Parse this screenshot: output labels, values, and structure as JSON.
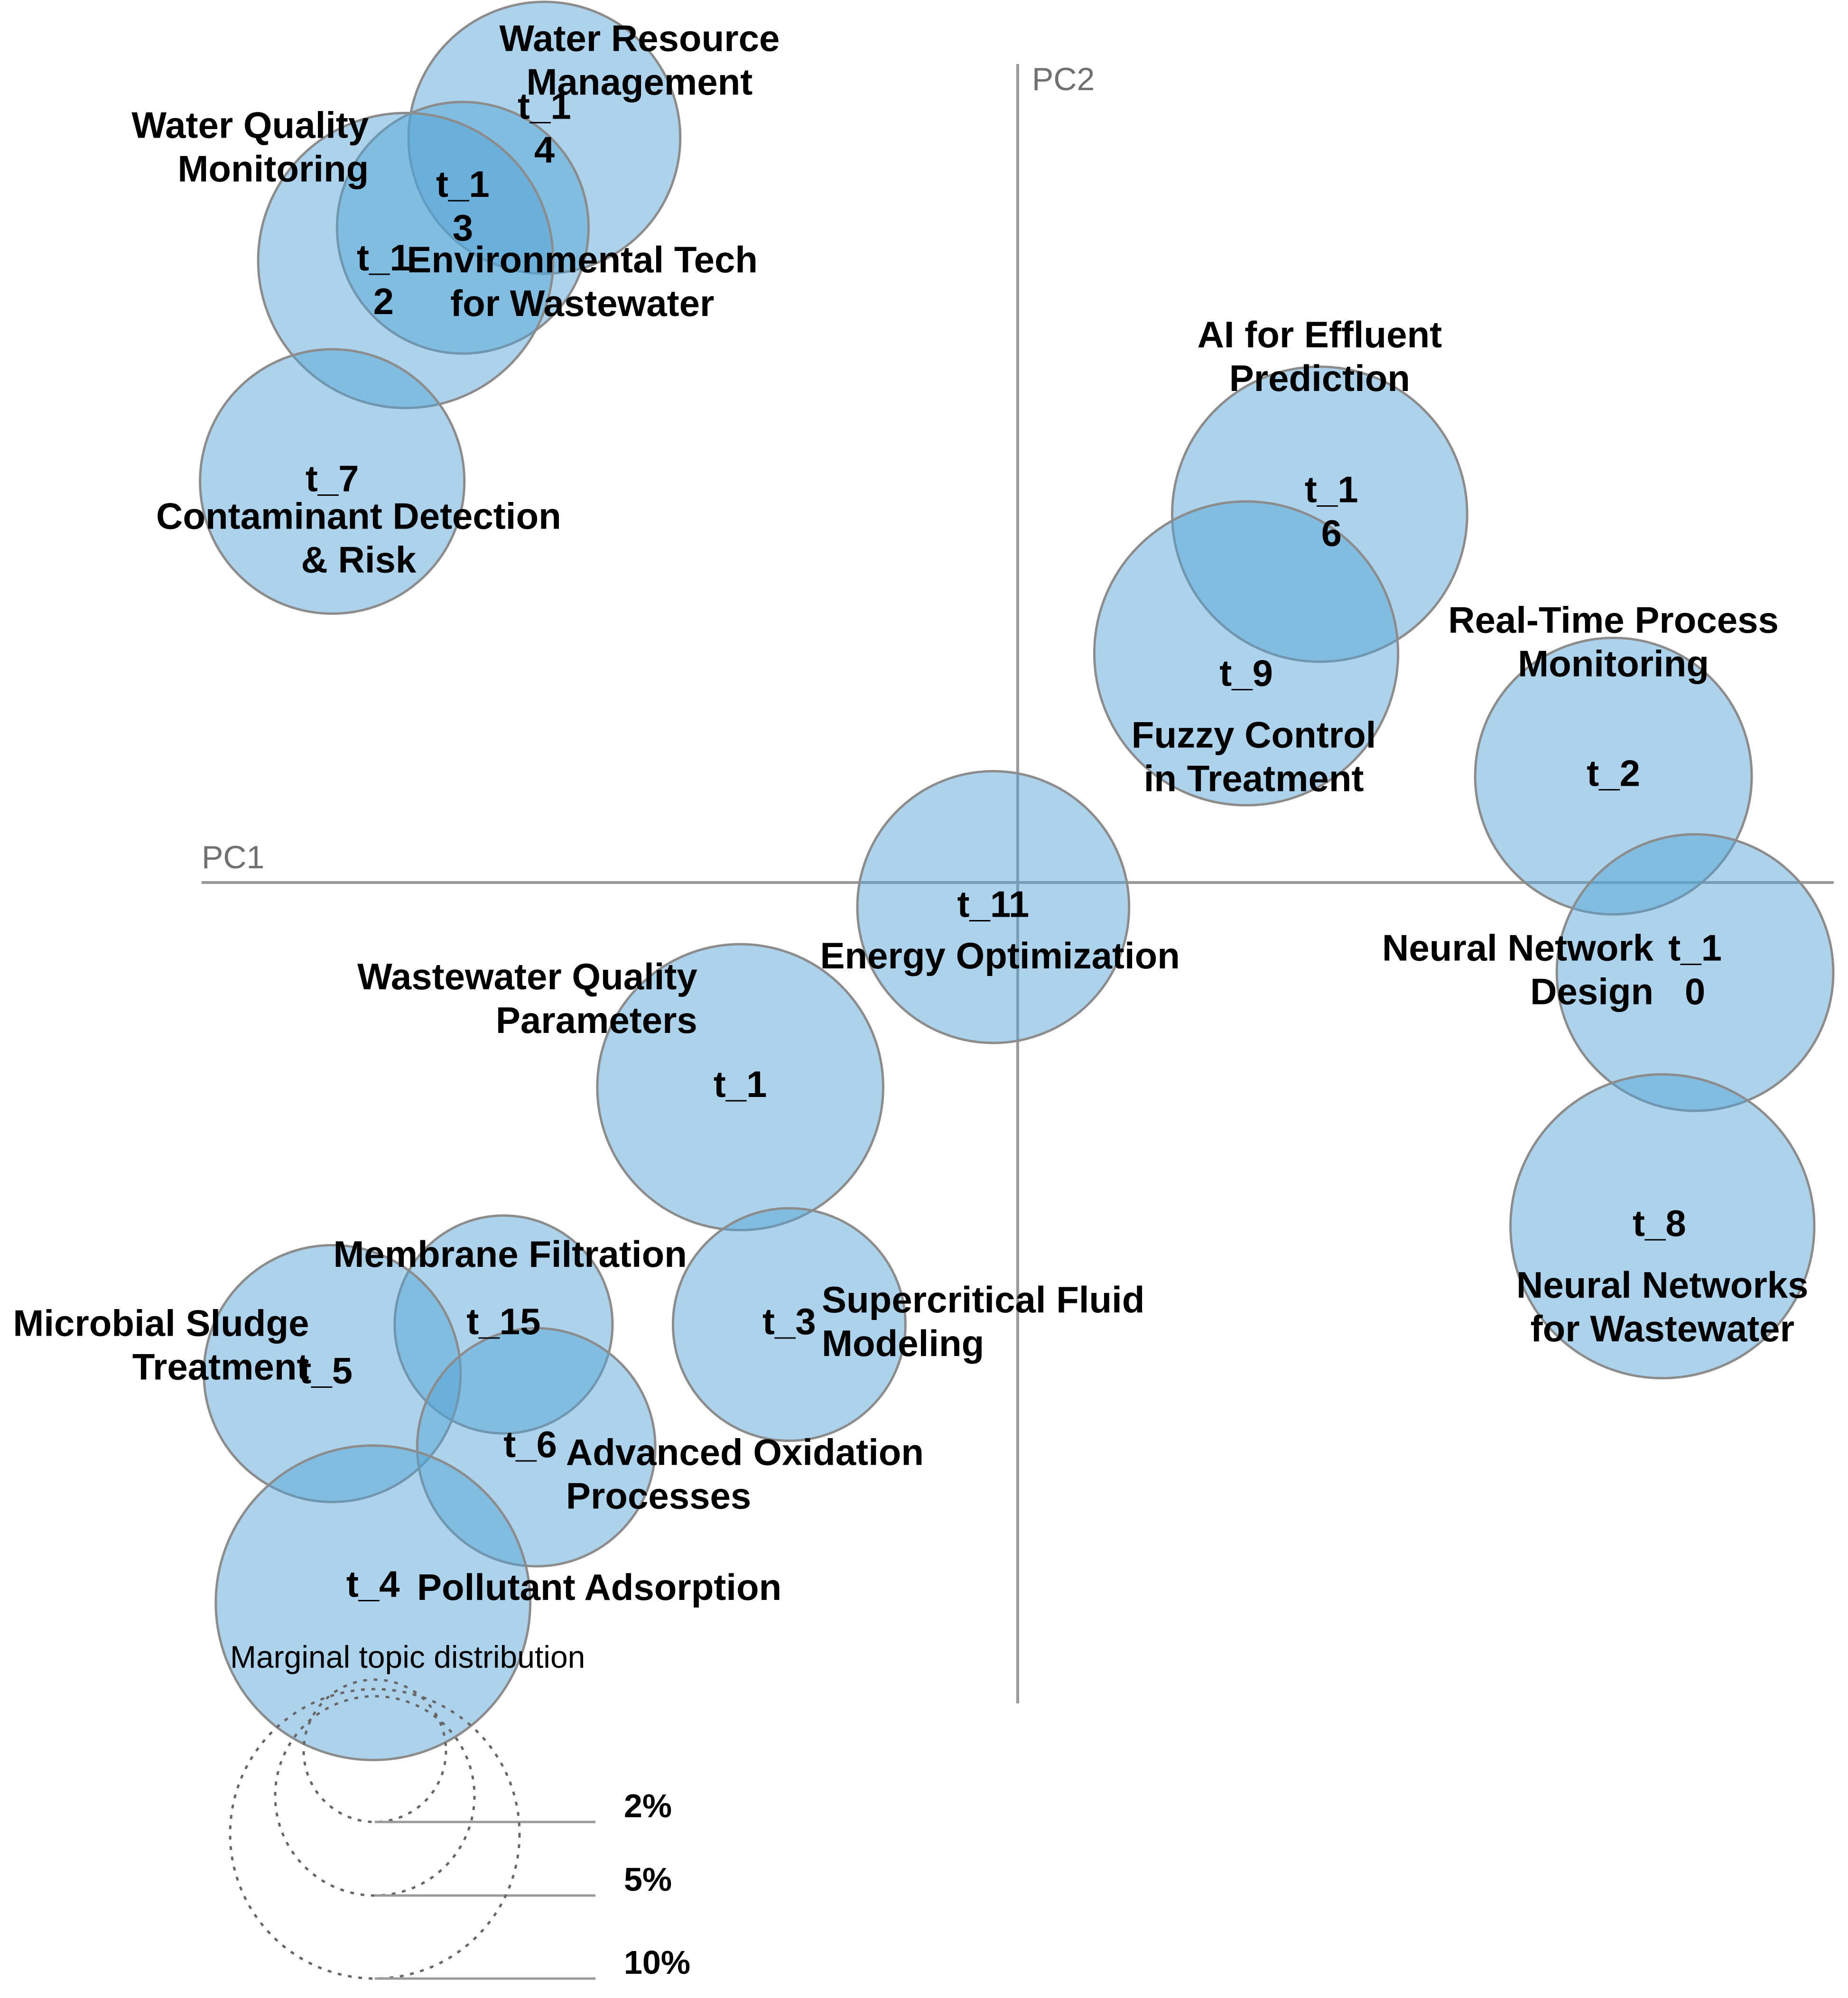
{
  "chart_data": {
    "type": "scatter",
    "title": "",
    "xlabel": "PC1",
    "ylabel": "PC2",
    "xlim": [
      -10,
      10
    ],
    "ylim": [
      -10,
      10
    ],
    "grid": false,
    "colors": {
      "bubble": "#52a2d6",
      "axis": "#9a9a9a",
      "legend": "#666666"
    },
    "topics": [
      {
        "id": "t_14",
        "id_lines": [
          "t_1",
          "4"
        ],
        "name_lines": [
          "Water Resource",
          "Management"
        ],
        "x": -5.8,
        "y": 9.1,
        "size": 5.6
      },
      {
        "id": "t_13",
        "id_lines": [
          "t_1",
          "3"
        ],
        "name_lines": [
          "Environmental Tech",
          "for Wastewater"
        ],
        "x": -6.8,
        "y": 8.0,
        "size": 4.8
      },
      {
        "id": "t_12",
        "id_lines": [
          "t_1",
          "2"
        ],
        "name_lines": [
          "Water Quality",
          "Monitoring"
        ],
        "x": -7.5,
        "y": 7.6,
        "size": 6.6
      },
      {
        "id": "t_7",
        "id_lines": [
          "t_7"
        ],
        "name_lines": [
          "Contaminant Detection",
          "& Risk"
        ],
        "x": -8.4,
        "y": 4.9,
        "size": 5.3
      },
      {
        "id": "t_16",
        "id_lines": [
          "t_1",
          "6"
        ],
        "name_lines": [
          "AI for Effluent",
          "Prediction"
        ],
        "x": 3.7,
        "y": 4.5,
        "size": 6.6
      },
      {
        "id": "t_9",
        "id_lines": [
          "t_9"
        ],
        "name_lines": [
          "Fuzzy Control",
          "in Treatment"
        ],
        "x": 2.8,
        "y": 2.8,
        "size": 7.0
      },
      {
        "id": "t_2",
        "id_lines": [
          "t_2"
        ],
        "name_lines": [
          "Real-Time Process",
          "Monitoring"
        ],
        "x": 7.3,
        "y": 1.3,
        "size": 5.8
      },
      {
        "id": "t_11",
        "id_lines": [
          "t_11"
        ],
        "name_lines": [
          "Energy Optimization"
        ],
        "x": -0.3,
        "y": -0.3,
        "size": 5.6
      },
      {
        "id": "t_10",
        "id_lines": [
          "t_1",
          "0"
        ],
        "name_lines": [
          "Neural Network",
          "Design"
        ],
        "x": 8.3,
        "y": -1.1,
        "size": 5.8
      },
      {
        "id": "t_1",
        "id_lines": [
          "t_1"
        ],
        "name_lines": [
          "Wastewater Quality",
          "Parameters"
        ],
        "x": -3.4,
        "y": -2.5,
        "size": 6.2
      },
      {
        "id": "t_8",
        "id_lines": [
          "t_8"
        ],
        "name_lines": [
          "Neural Networks",
          "for Wastewater"
        ],
        "x": 7.9,
        "y": -4.2,
        "size": 7.0
      },
      {
        "id": "t_15",
        "id_lines": [
          "t_15"
        ],
        "name_lines": [
          "Membrane Filtration"
        ],
        "x": -6.3,
        "y": -5.4,
        "size": 3.6
      },
      {
        "id": "t_3",
        "id_lines": [
          "t_3"
        ],
        "name_lines": [
          "Supercritical Fluid",
          "Modeling"
        ],
        "x": -2.8,
        "y": -5.4,
        "size": 4.1
      },
      {
        "id": "t_5",
        "id_lines": [
          "t_5"
        ],
        "name_lines": [
          "Microbial Sludge",
          "Treatment"
        ],
        "x": -8.4,
        "y": -6.0,
        "size": 5.0
      },
      {
        "id": "t_6",
        "id_lines": [
          "t_6"
        ],
        "name_lines": [
          "Advanced Oxidation",
          "Processes"
        ],
        "x": -5.9,
        "y": -6.9,
        "size": 4.3
      },
      {
        "id": "t_4",
        "id_lines": [
          "t_4"
        ],
        "name_lines": [
          "Pollutant Adsorption"
        ],
        "x": -7.9,
        "y": -8.8,
        "size": 7.5
      }
    ],
    "legend": {
      "title": "Marginal topic distribution",
      "items": [
        {
          "label": "2%",
          "value": 2
        },
        {
          "label": "5%",
          "value": 5
        },
        {
          "label": "10%",
          "value": 10
        }
      ]
    }
  }
}
